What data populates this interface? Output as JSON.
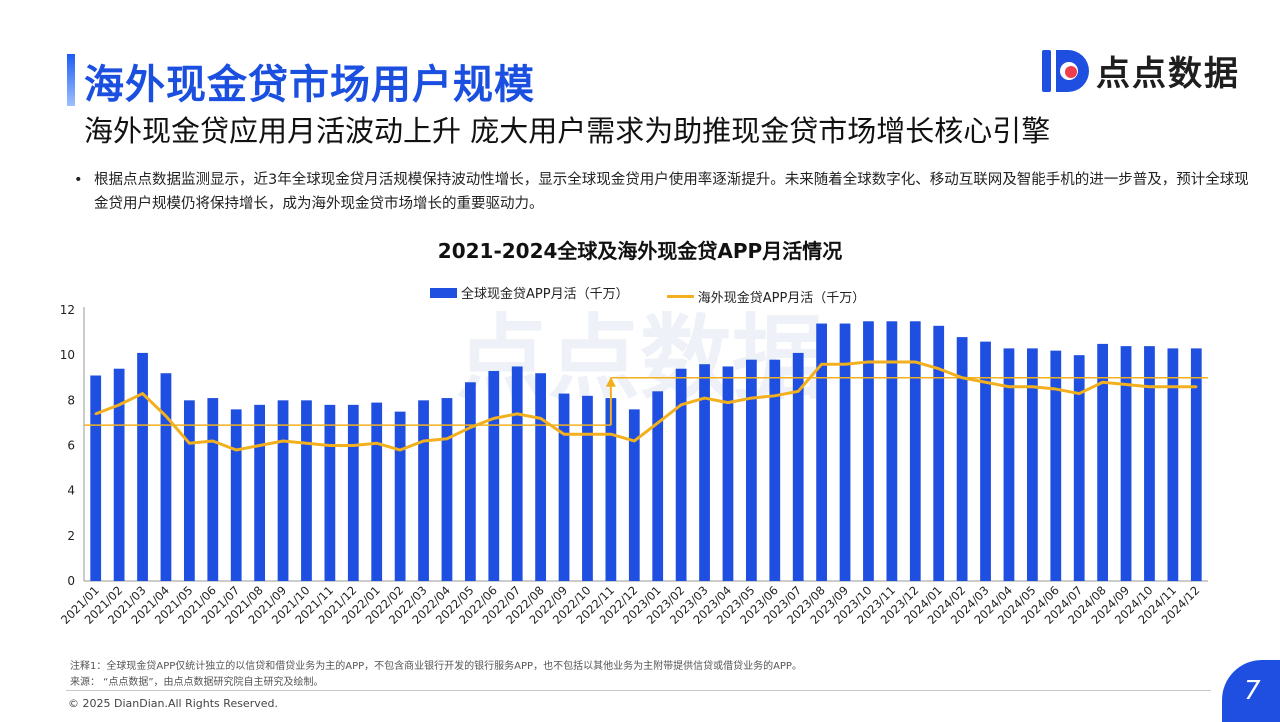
{
  "header": {
    "title": "海外现金贷市场用户规模",
    "subtitle": "海外现金贷应用月活波动上升 庞大用户需求为助推现金贷市场增长核心引擎",
    "logo_text": "点点数据"
  },
  "bullet": {
    "marker": "•",
    "text": "根据点点数据监测显示，近3年全球现金贷月活规模保持波动性增长，显示全球现金贷用户使用率逐渐提升。未来随着全球数字化、移动互联网及智能手机的进一步普及，预计全球现金贷用户规模仍将保持增长，成为海外现金贷市场增长的重要驱动力。"
  },
  "chart_data": {
    "type": "bar",
    "title": "2021-2024全球及海外现金贷APP月活情况",
    "categories": [
      "2021/01",
      "2021/02",
      "2021/03",
      "2021/04",
      "2021/05",
      "2021/06",
      "2021/07",
      "2021/08",
      "2021/09",
      "2021/10",
      "2021/11",
      "2021/12",
      "2022/01",
      "2022/02",
      "2022/03",
      "2022/04",
      "2022/05",
      "2022/06",
      "2022/07",
      "2022/08",
      "2022/09",
      "2022/10",
      "2022/11",
      "2022/12",
      "2023/01",
      "2023/02",
      "2023/03",
      "2023/04",
      "2023/05",
      "2023/06",
      "2023/07",
      "2023/08",
      "2023/09",
      "2023/10",
      "2023/11",
      "2023/12",
      "2024/01",
      "2024/02",
      "2024/03",
      "2024/04",
      "2024/05",
      "2024/06",
      "2024/07",
      "2024/08",
      "2024/09",
      "2024/10",
      "2024/11",
      "2024/12"
    ],
    "series": [
      {
        "name": "全球现金贷APP月活（千万）",
        "type": "bar",
        "color": "#1f4fe0",
        "values": [
          9.1,
          9.4,
          10.1,
          9.2,
          8.0,
          8.1,
          7.6,
          7.8,
          8.0,
          8.0,
          7.8,
          7.8,
          7.9,
          7.5,
          8.0,
          8.1,
          8.8,
          9.3,
          9.5,
          9.2,
          8.3,
          8.2,
          8.1,
          7.6,
          8.4,
          9.4,
          9.6,
          9.5,
          9.8,
          9.8,
          10.1,
          11.4,
          11.4,
          11.5,
          11.5,
          11.5,
          11.3,
          10.8,
          10.6,
          10.3,
          10.3,
          10.2,
          10.0,
          10.5,
          10.4,
          10.4,
          10.3,
          10.3
        ]
      },
      {
        "name": "海外现金贷APP月活（千万）",
        "type": "line",
        "color": "#f2b01e",
        "values": [
          7.4,
          7.8,
          8.3,
          7.3,
          6.1,
          6.2,
          5.8,
          6.0,
          6.2,
          6.1,
          6.0,
          6.0,
          6.1,
          5.8,
          6.2,
          6.3,
          6.8,
          7.2,
          7.4,
          7.2,
          6.5,
          6.5,
          6.5,
          6.2,
          7.0,
          7.8,
          8.1,
          7.9,
          8.1,
          8.2,
          8.4,
          9.6,
          9.6,
          9.7,
          9.7,
          9.7,
          9.4,
          9.0,
          8.8,
          8.6,
          8.6,
          8.5,
          8.3,
          8.8,
          8.7,
          8.6,
          8.6,
          8.6
        ]
      }
    ],
    "reference_lines": [
      {
        "from": "2021/01",
        "to": "2022/11",
        "value": 6.9,
        "color": "#f2b01e"
      },
      {
        "from": "2022/11",
        "to": "2024/12",
        "value": 9.0,
        "color": "#f2b01e"
      }
    ],
    "annotation": {
      "type": "arrow-up",
      "at": "2022/11",
      "from": 6.9,
      "to": 9.0,
      "color": "#f2b01e"
    },
    "ylim": [
      0,
      12
    ],
    "yticks": [
      0,
      2,
      4,
      6,
      8,
      10,
      12
    ],
    "xlabel": "",
    "ylabel": "",
    "legend_position": "top-center",
    "grid": false,
    "watermark": "点点数据"
  },
  "notes": {
    "note1": "注释1：全球现金贷APP仅统计独立的以信贷和借贷业务为主的APP，不包含商业银行开发的银行服务APP，也不包括以其他业务为主附带提供信贷或借贷业务的APP。",
    "source": "来源：  “点点数据”，由点点数据研究院自主研究及绘制。"
  },
  "footer": {
    "copyright": "© 2025 DianDian.All Rights Reserved.",
    "page_number": "7"
  }
}
